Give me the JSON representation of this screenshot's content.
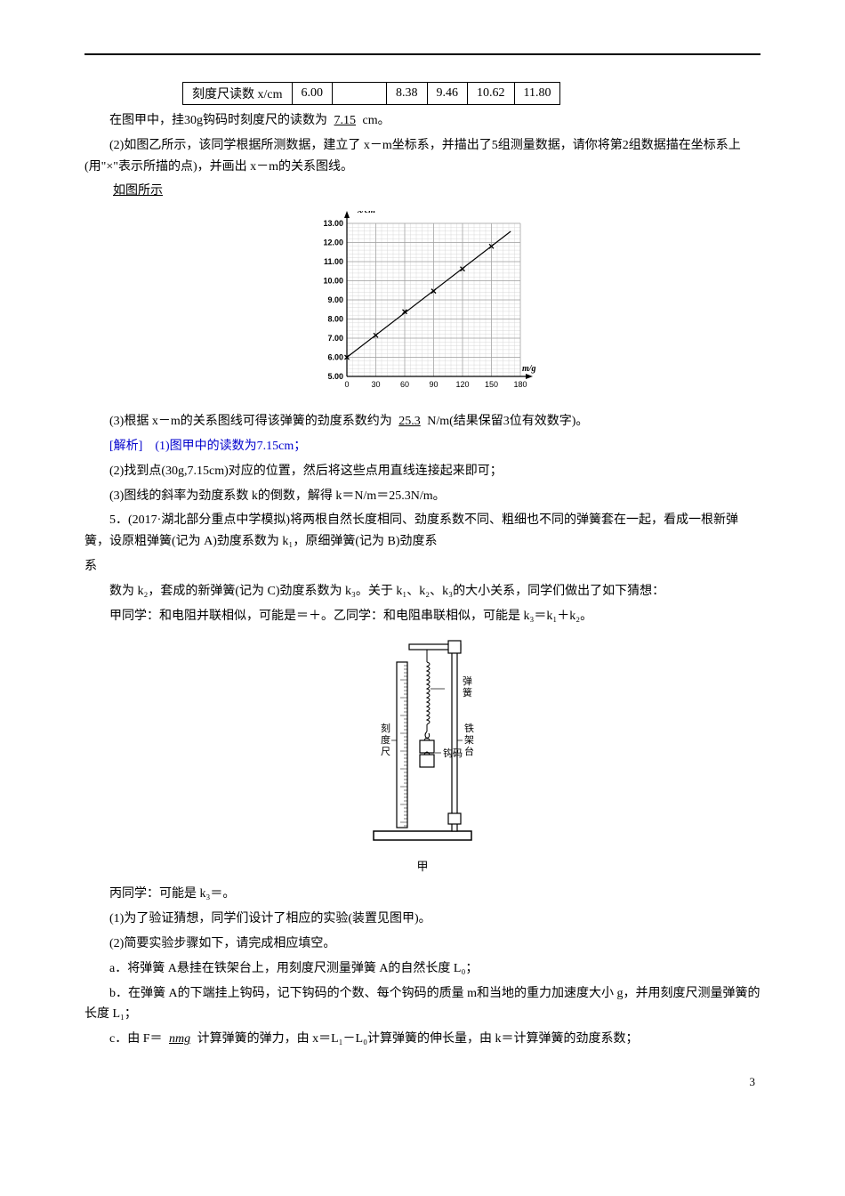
{
  "table": {
    "header": "刻度尺读数 x/cm",
    "cells": [
      "6.00",
      "",
      "8.38",
      "9.46",
      "10.62",
      "11.80"
    ]
  },
  "lines": {
    "l0a": "在图甲中，挂30g钩码时刻度尺的读数为",
    "l0_blank": "7.15",
    "l0b": "cm。",
    "l1": "(2)如图乙所示，该同学根据所测数据，建立了 x－m坐标系，并描出了5组测量数据，请你将第2组数据描在坐标系上(用\"×\"表示所描的点)，并画出 x－m的关系图线。",
    "l2": "如图所示",
    "l3a": "(3)根据 x－m的关系图线可得该弹簧的劲度系数约为",
    "l3_blank": "25.3",
    "l3b": "N/m(结果保留3位有效数字)。",
    "l4": "[解析]　(1)图甲中的读数为7.15cm；",
    "l5": "(2)找到点(30g,7.15cm)对应的位置，然后将这些点用直线连接起来即可；",
    "l6": "(3)图线的斜率为劲度系数 k的倒数，解得 k＝N/m＝25.3N/m。",
    "l7": "5．(2017·湖北部分重点中学模拟)将两根自然长度相同、劲度系数不同、粗细也不同的弹簧套在一起，看成一根新弹簧，设原粗弹簧(记为 A)劲度系数为 k₁，原细弹簧(记为 B)劲度系",
    "l8": "数为 k₂，套成的新弹簧(记为 C)劲度系数为 k₃。关于 k₁、k₂、k₃的大小关系，同学们做出了如下猜想：",
    "l9": "甲同学：和电阻并联相似，可能是＝＋。乙同学：和电阻串联相似，可能是 k₃＝k₁＋k₂。",
    "l10": "丙同学：可能是 k₃＝。",
    "l11": "(1)为了验证猜想，同学们设计了相应的实验(装置见图甲)。",
    "l12": "(2)简要实验步骤如下，请完成相应填空。",
    "l13": "a．将弹簧 A悬挂在铁架台上，用刻度尺测量弹簧 A的自然长度 L₀；",
    "l14": "b．在弹簧 A的下端挂上钩码，记下钩码的个数、每个钩码的质量 m和当地的重力加速度大小 g，并用刻度尺测量弹簧的长度 L₁；",
    "l15a": "c．由 F＝",
    "l15_blank": "nmg",
    "l15b": "计算弹簧的弹力，由 x＝L₁－L₀计算弹簧的伸长量，由 k＝计算弹簧的劲度系数；"
  },
  "chart1": {
    "type": "line-scatter",
    "x_axis_label": "m/g",
    "y_axis_label": "x/cm",
    "xlim": [
      0,
      180
    ],
    "ylim": [
      5.0,
      13.0
    ],
    "xtick_step": 30,
    "ytick_step": 1.0,
    "xticks": [
      0,
      30,
      60,
      90,
      120,
      150,
      180
    ],
    "yticks": [
      "5.00",
      "6.00",
      "7.00",
      "8.00",
      "9.00",
      "10.00",
      "11.00",
      "12.00",
      "13.00"
    ],
    "background_color": "#ffffff",
    "grid_major_color": "#a0a0a0",
    "grid_minor_color": "#d0d0d0",
    "axis_color": "#000000",
    "line_color": "#000000",
    "marker_color": "#000000",
    "line_width": 1.2,
    "marker_size": 5,
    "tick_fontsize": 9,
    "label_fontsize": 10,
    "data_points": [
      {
        "m": 0,
        "x": 6.0
      },
      {
        "m": 30,
        "x": 7.15
      },
      {
        "m": 60,
        "x": 8.38
      },
      {
        "m": 90,
        "x": 9.46
      },
      {
        "m": 120,
        "x": 10.62
      },
      {
        "m": 150,
        "x": 11.8
      }
    ],
    "fit_line": {
      "m1": 0,
      "x1": 6.0,
      "m2": 170,
      "x2": 12.58
    }
  },
  "apparatus": {
    "labels": {
      "spring": "弹簧",
      "ruler": "刻度尺",
      "stand": "铁架台",
      "weight": "钩码",
      "caption": "甲"
    },
    "colors": {
      "line": "#000000",
      "fill": "#ffffff"
    },
    "fontsize": 11
  },
  "page_number": "3"
}
